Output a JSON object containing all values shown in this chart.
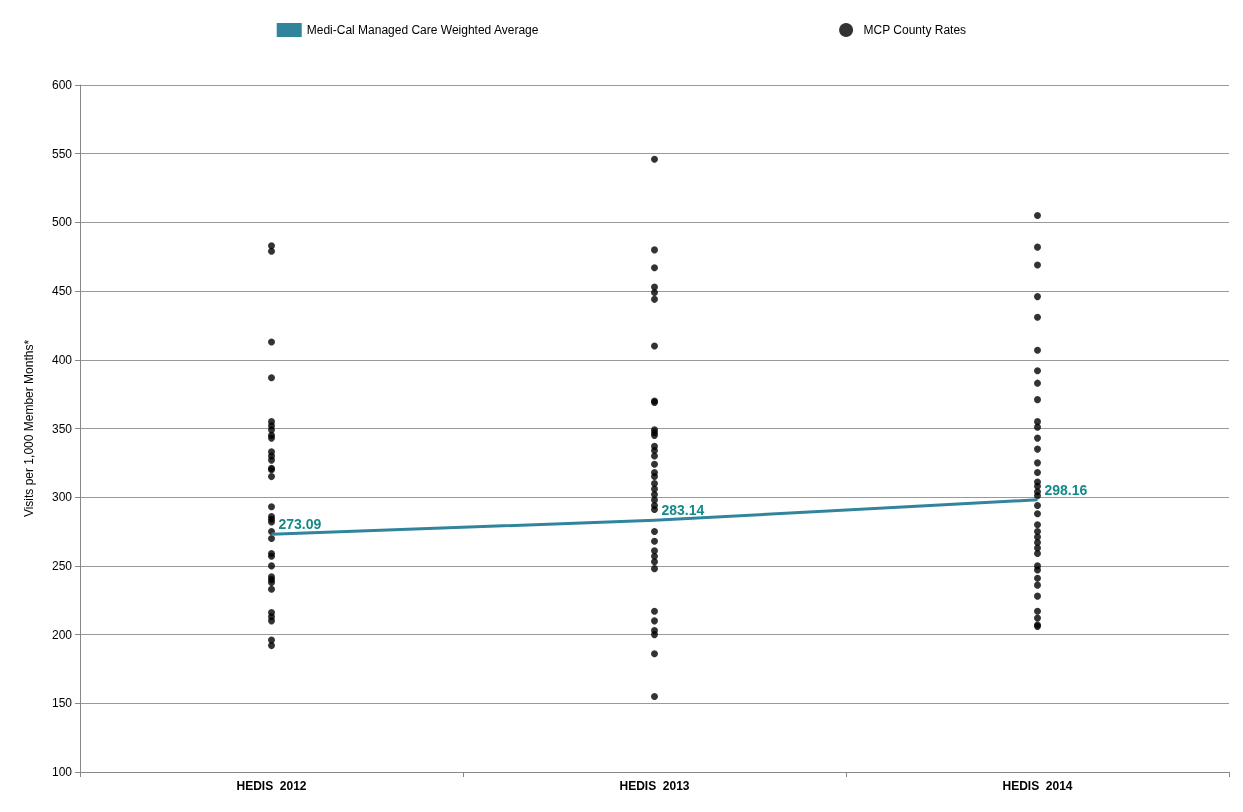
{
  "chart_data": {
    "type": "line",
    "ylabel": "Visits per 1,000 Member Months*",
    "categories": [
      "HEDIS  2012",
      "HEDIS  2013",
      "HEDIS  2014"
    ],
    "ylim": [
      100,
      600
    ],
    "yticks": [
      100,
      150,
      200,
      250,
      300,
      350,
      400,
      450,
      500,
      550,
      600
    ],
    "grid": "y",
    "legend": "top",
    "series": [
      {
        "name": "Medi-Cal Managed Care Weighted Average",
        "color": "#31849b",
        "values": [
          273.09,
          283.14,
          298.16
        ],
        "data_labels": true,
        "marker": "none"
      },
      {
        "name": "MCP County Rates",
        "type": "scatter",
        "color": "#000000",
        "marker": "circle",
        "x": [
          "HEDIS  2012",
          "HEDIS  2012",
          "HEDIS  2012",
          "HEDIS  2012",
          "HEDIS  2012",
          "HEDIS  2012",
          "HEDIS  2012",
          "HEDIS  2012",
          "HEDIS  2012",
          "HEDIS  2012",
          "HEDIS  2012",
          "HEDIS  2012",
          "HEDIS  2012",
          "HEDIS  2012",
          "HEDIS  2012",
          "HEDIS  2012",
          "HEDIS  2012",
          "HEDIS  2012",
          "HEDIS  2012",
          "HEDIS  2012",
          "HEDIS  2012",
          "HEDIS  2012",
          "HEDIS  2012",
          "HEDIS  2012",
          "HEDIS  2012",
          "HEDIS  2012",
          "HEDIS  2012",
          "HEDIS  2012",
          "HEDIS  2012",
          "HEDIS  2012",
          "HEDIS  2012",
          "HEDIS  2012",
          "HEDIS  2012",
          "HEDIS  2013",
          "HEDIS  2013",
          "HEDIS  2013",
          "HEDIS  2013",
          "HEDIS  2013",
          "HEDIS  2013",
          "HEDIS  2013",
          "HEDIS  2013",
          "HEDIS  2013",
          "HEDIS  2013",
          "HEDIS  2013",
          "HEDIS  2013",
          "HEDIS  2013",
          "HEDIS  2013",
          "HEDIS  2013",
          "HEDIS  2013",
          "HEDIS  2013",
          "HEDIS  2013",
          "HEDIS  2013",
          "HEDIS  2013",
          "HEDIS  2013",
          "HEDIS  2013",
          "HEDIS  2013",
          "HEDIS  2013",
          "HEDIS  2013",
          "HEDIS  2013",
          "HEDIS  2013",
          "HEDIS  2013",
          "HEDIS  2013",
          "HEDIS  2013",
          "HEDIS  2013",
          "HEDIS  2013",
          "HEDIS  2013",
          "HEDIS  2013",
          "HEDIS  2013",
          "HEDIS  2013",
          "HEDIS  2014",
          "HEDIS  2014",
          "HEDIS  2014",
          "HEDIS  2014",
          "HEDIS  2014",
          "HEDIS  2014",
          "HEDIS  2014",
          "HEDIS  2014",
          "HEDIS  2014",
          "HEDIS  2014",
          "HEDIS  2014",
          "HEDIS  2014",
          "HEDIS  2014",
          "HEDIS  2014",
          "HEDIS  2014",
          "HEDIS  2014",
          "HEDIS  2014",
          "HEDIS  2014",
          "HEDIS  2014",
          "HEDIS  2014",
          "HEDIS  2014",
          "HEDIS  2014",
          "HEDIS  2014",
          "HEDIS  2014",
          "HEDIS  2014",
          "HEDIS  2014",
          "HEDIS  2014",
          "HEDIS  2014",
          "HEDIS  2014",
          "HEDIS  2014",
          "HEDIS  2014",
          "HEDIS  2014",
          "HEDIS  2014",
          "HEDIS  2014",
          "HEDIS  2014",
          "HEDIS  2014"
        ],
        "values": [
          483,
          479,
          413,
          387,
          355,
          352,
          349,
          345,
          343,
          333,
          330,
          327,
          321,
          320,
          315,
          293,
          286,
          284,
          282,
          275,
          270,
          259,
          257,
          250,
          242,
          240,
          238,
          233,
          216,
          213,
          210,
          196,
          192,
          546,
          480,
          467,
          453,
          449,
          444,
          410,
          370,
          369,
          349,
          347,
          345,
          337,
          334,
          330,
          324,
          318,
          315,
          310,
          306,
          302,
          298,
          294,
          291,
          275,
          268,
          261,
          257,
          253,
          248,
          217,
          210,
          203,
          200,
          186,
          155,
          505,
          482,
          469,
          446,
          431,
          407,
          392,
          383,
          371,
          355,
          351,
          343,
          335,
          325,
          318,
          311,
          308,
          304,
          301,
          294,
          288,
          280,
          275,
          271,
          267,
          263,
          259,
          250,
          247,
          241,
          236,
          228,
          217,
          212,
          207,
          206
        ]
      }
    ]
  }
}
